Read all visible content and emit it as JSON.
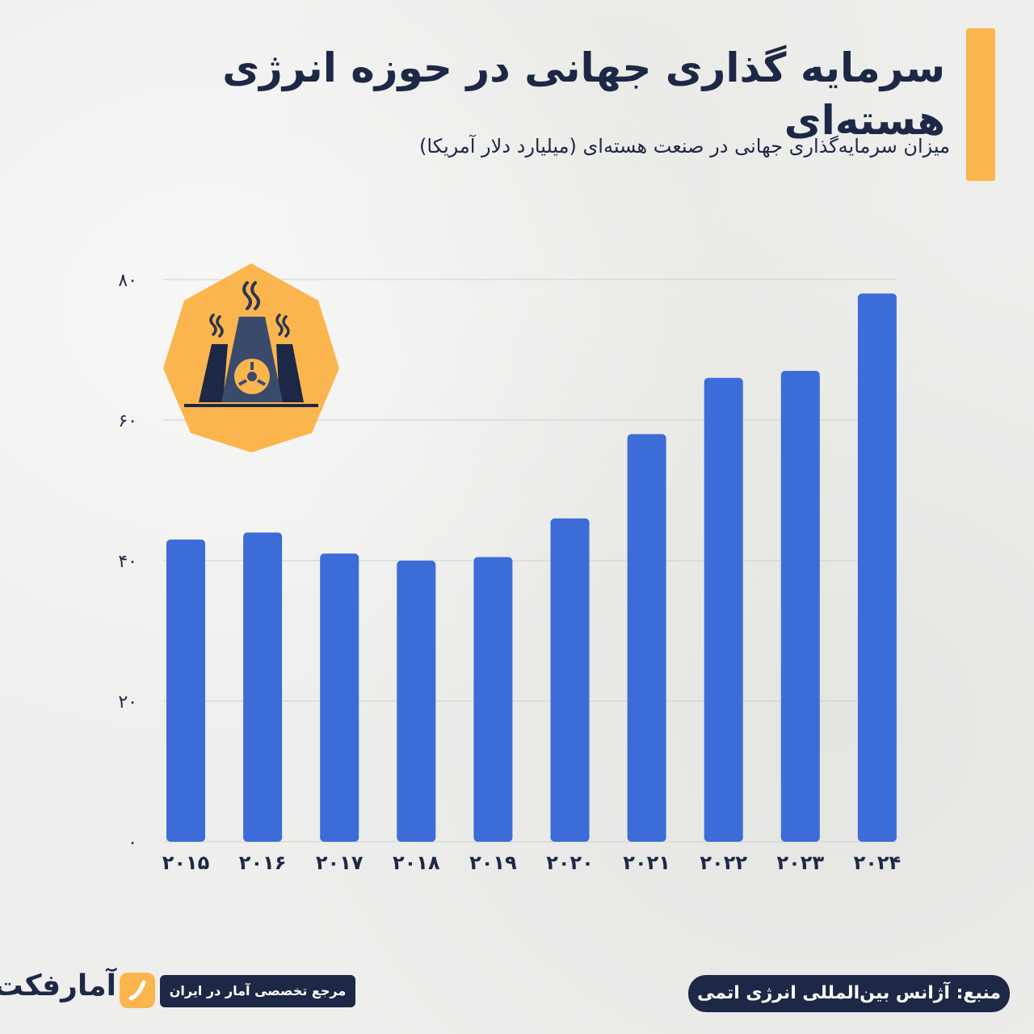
{
  "header": {
    "title": "سرمایه گذاری جهانی در حوزه انرژی هسته‌ای",
    "subtitle": "میزان سرمایه‌گذاری جهانی در صنعت هسته‌ای (میلیارد دلار آمریکا)"
  },
  "colors": {
    "bar": "#3b6cd8",
    "accent": "#fbb54e",
    "navy": "#1d2846",
    "grid": "#cfcfcf"
  },
  "icon": {
    "name": "nuclear-plant-icon"
  },
  "chart_data": {
    "type": "bar",
    "categories": [
      "۲۰۱۵",
      "۲۰۱۶",
      "۲۰۱۷",
      "۲۰۱۸",
      "۲۰۱۹",
      "۲۰۲۰",
      "۲۰۲۱",
      "۲۰۲۲",
      "۲۰۲۳",
      "۲۰۲۴"
    ],
    "values": [
      43,
      44,
      41,
      40,
      40.5,
      46,
      58,
      66,
      67,
      78
    ],
    "ylim": [
      0,
      80
    ],
    "yticks": [
      0,
      20,
      40,
      60,
      80
    ],
    "ytick_labels": [
      "۰",
      "۲۰",
      "۴۰",
      "۶۰",
      "۸۰"
    ],
    "grid": true,
    "title": "",
    "xlabel": "",
    "ylabel": ""
  },
  "footer": {
    "source": "منبع: آژانس بین‌المللی انرژی اتمی",
    "tagline": "مرجع تخصصی آمار در ایران",
    "logo": "آمارفکت"
  }
}
